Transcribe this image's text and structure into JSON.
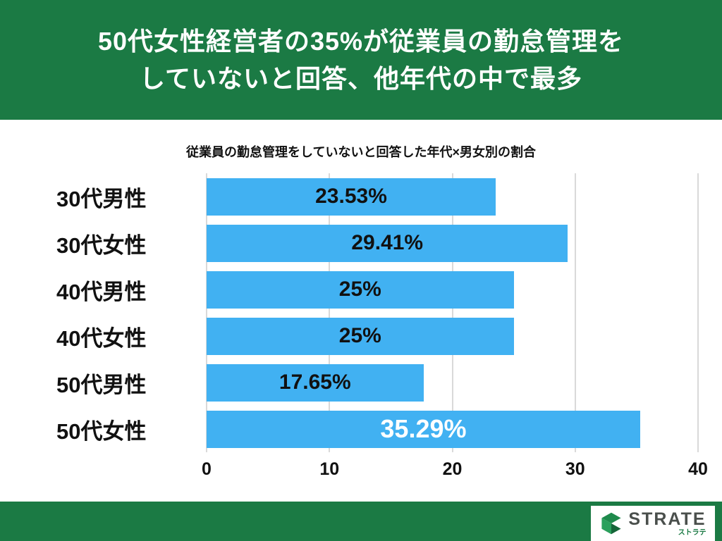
{
  "header": {
    "title_lines": [
      "50代女性経営者の35%が従業員の勤怠管理を",
      "していないと回答、他年代の中で最多"
    ]
  },
  "chart_data": {
    "type": "bar",
    "orientation": "horizontal",
    "title": "従業員の勤怠管理をしていないと回答した年代×男女別の割合",
    "categories": [
      "30代男性",
      "30代女性",
      "40代男性",
      "40代女性",
      "50代男性",
      "50代女性"
    ],
    "values": [
      23.53,
      29.41,
      25,
      25,
      17.65,
      35.29
    ],
    "value_labels": [
      "23.53%",
      "29.41%",
      "25%",
      "25%",
      "17.65%",
      "35.29%"
    ],
    "x_ticks": [
      0,
      10,
      20,
      30,
      40
    ],
    "xlim": [
      0,
      40
    ],
    "grid": true,
    "legend": "none",
    "bar_color": "#41b1f2",
    "highlight_index": 5,
    "highlight_text_color": "#ffffff"
  },
  "footer": {
    "brand": "STRATE",
    "brand_sub": "ストラテ"
  },
  "colors": {
    "header_bg": "#1b7a44",
    "footer_bg": "#1b7a44",
    "bar": "#41b1f2",
    "gridline": "#d9d9d9",
    "text": "#111111"
  }
}
